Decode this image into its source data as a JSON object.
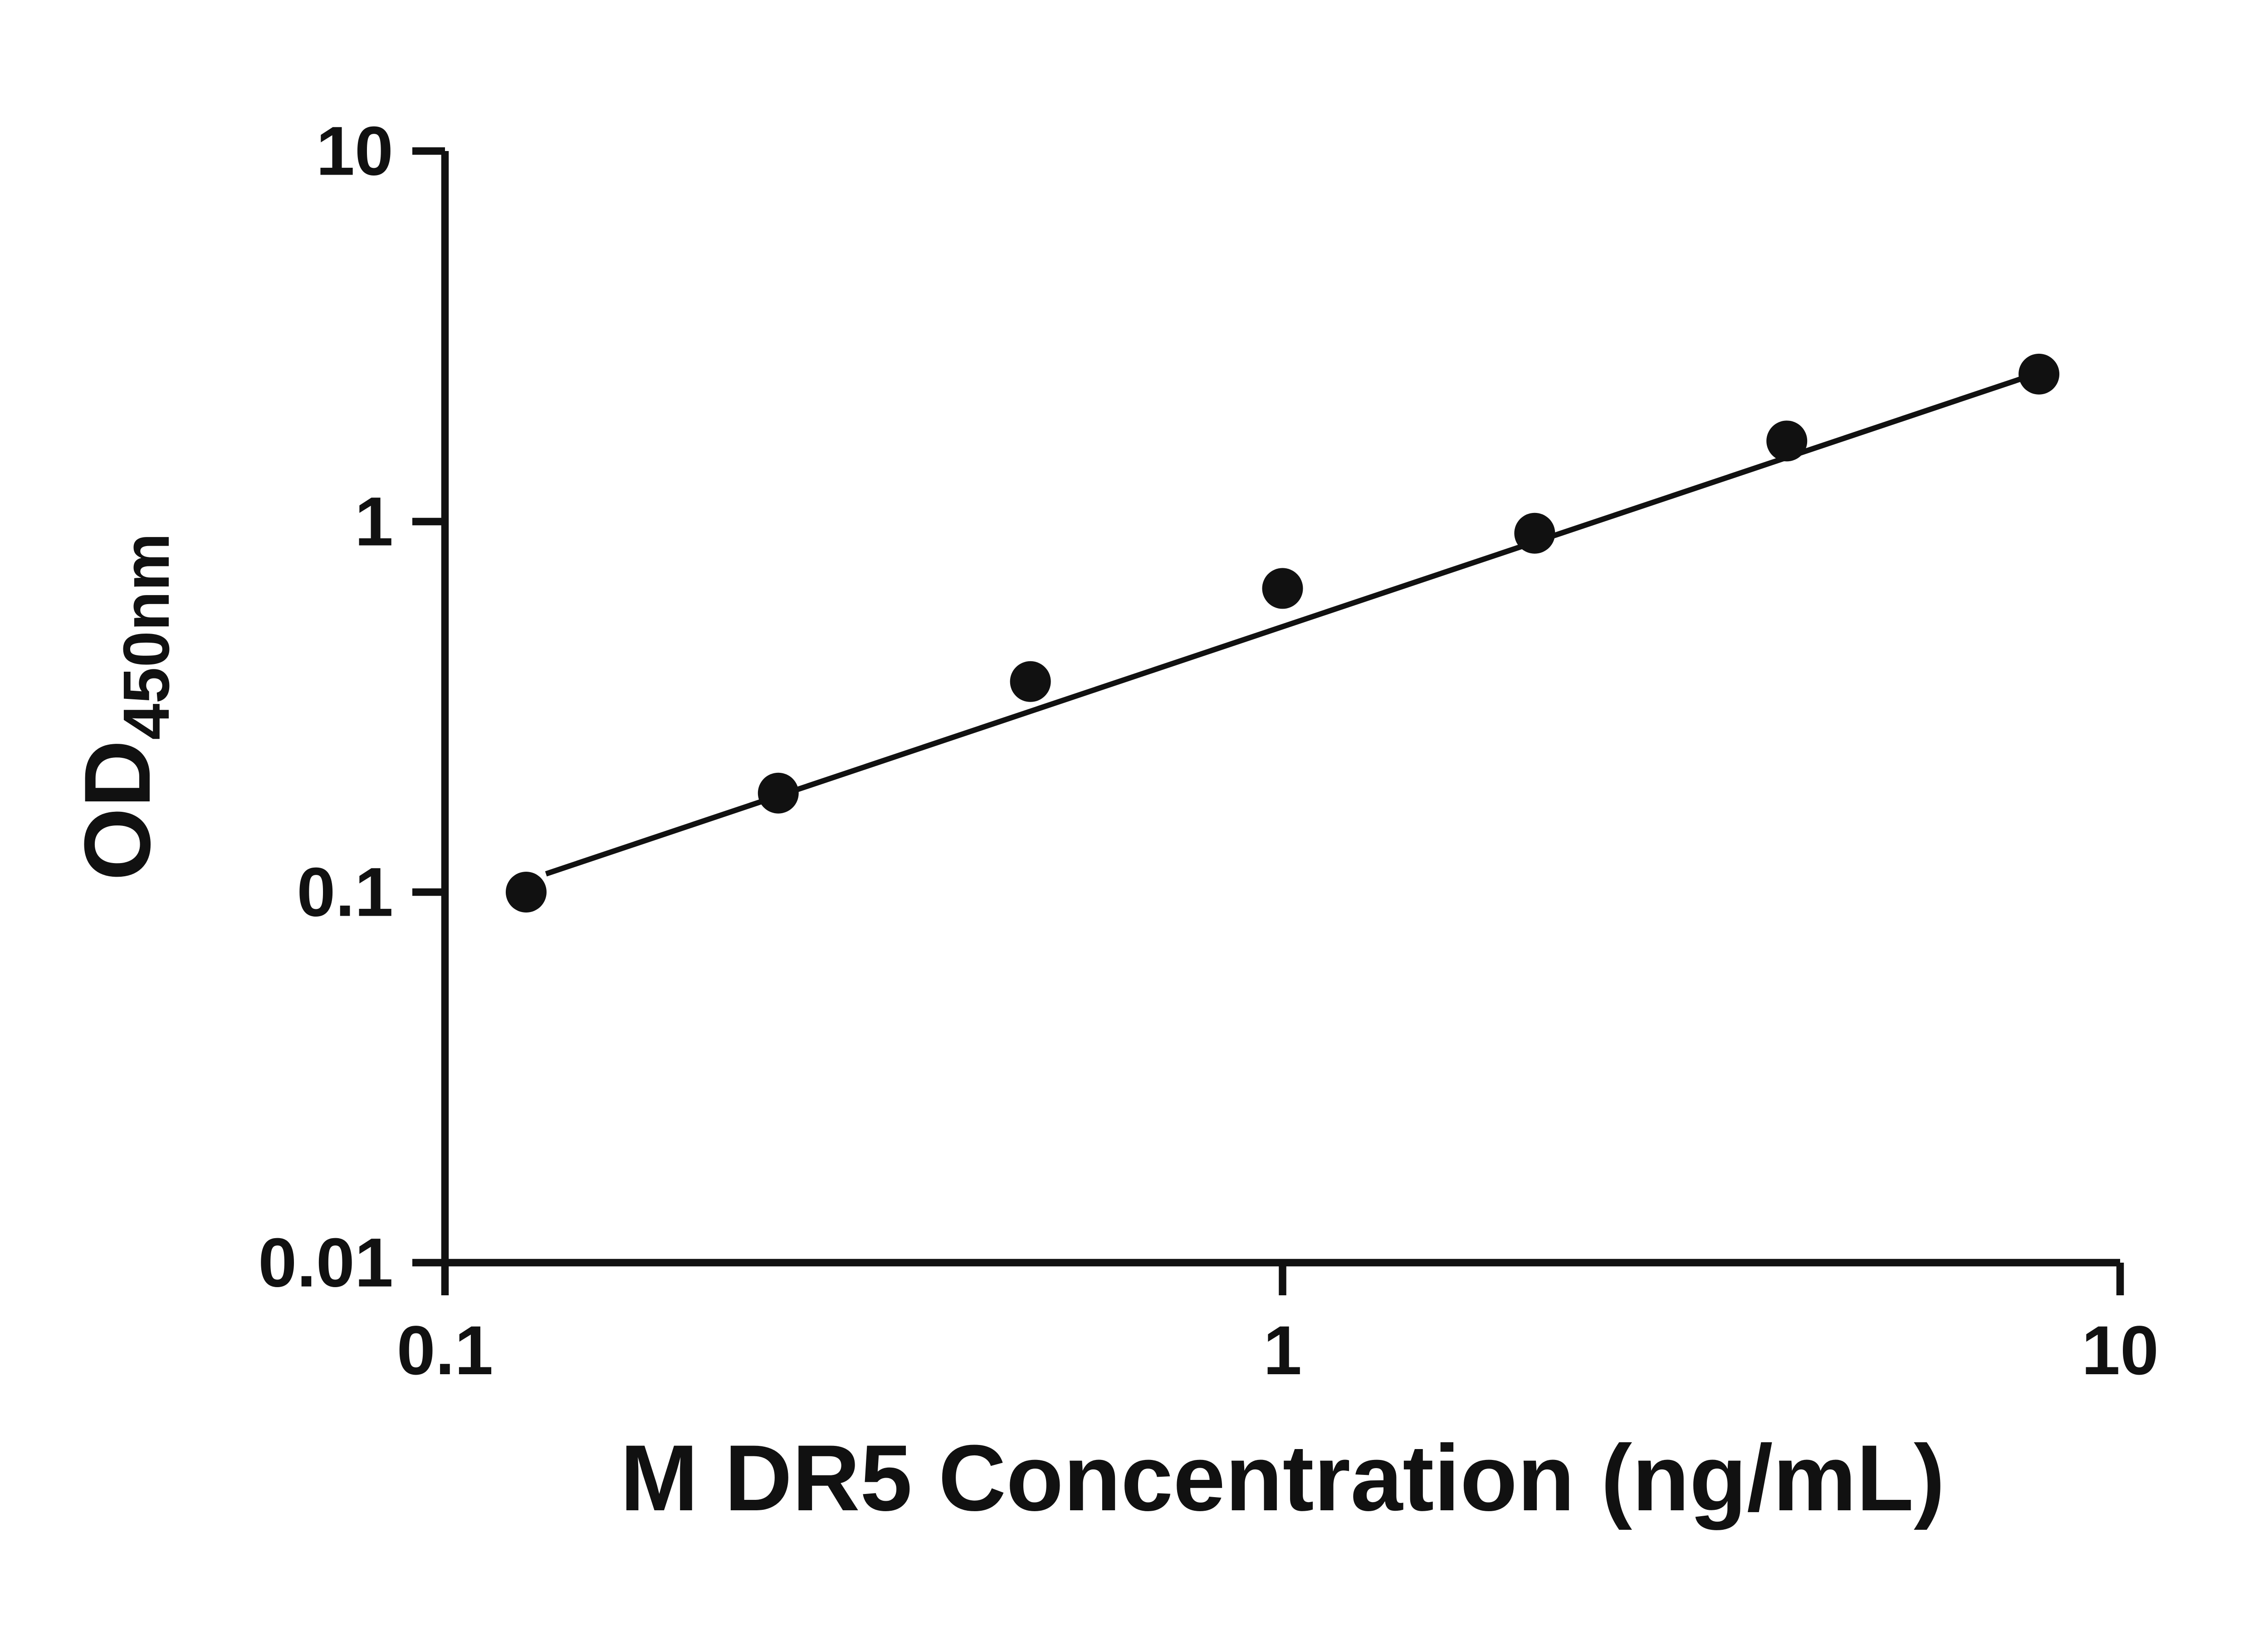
{
  "chart_data": {
    "type": "scatter",
    "title": "",
    "xlabel": "M DR5 Concentration (ng/mL)",
    "ylabel_main": "OD",
    "ylabel_sub": "450nm",
    "x_scale": "log",
    "y_scale": "log",
    "xlim": [
      0.1,
      10
    ],
    "ylim": [
      0.01,
      10
    ],
    "x_ticks": [
      0.1,
      1,
      10
    ],
    "x_tick_labels": [
      "0.1",
      "1",
      "10"
    ],
    "y_ticks": [
      0.01,
      0.1,
      1,
      10
    ],
    "y_tick_labels": [
      "0.01",
      "0.1",
      "1",
      "10"
    ],
    "grid": false,
    "legend": false,
    "points": [
      {
        "x": 0.125,
        "y": 0.1
      },
      {
        "x": 0.25,
        "y": 0.185
      },
      {
        "x": 0.5,
        "y": 0.37
      },
      {
        "x": 1,
        "y": 0.66
      },
      {
        "x": 2,
        "y": 0.93
      },
      {
        "x": 4,
        "y": 1.65
      },
      {
        "x": 8,
        "y": 2.5
      }
    ],
    "fit_line": {
      "x1": 0.132,
      "y1": 0.112,
      "x2": 8.0,
      "y2": 2.52
    },
    "colors": {
      "axis": "#111111",
      "points": "#111111",
      "line": "#111111",
      "background": "#ffffff"
    }
  }
}
